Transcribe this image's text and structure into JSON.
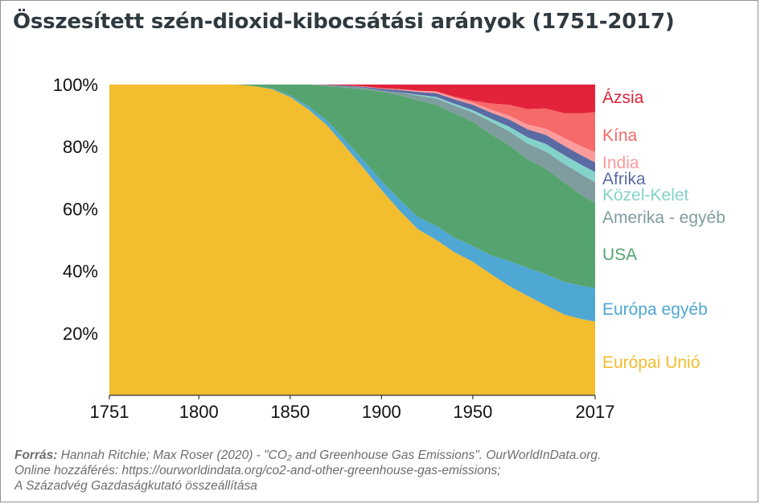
{
  "title": "Összesített szén-dioxid-kibocsátási arányok (1751-2017)",
  "source": {
    "label": "Forrás:",
    "line1": " Hannah Ritchie; Max Roser (2020) - \"CO₂ and Greenhouse Gas Emissions\". OurWorldInData.org.",
    "line2": "Online hozzáférés: https://ourworldindata.org/co2-and-other-greenhouse-gas-emissions;",
    "line3": "A Századvég Gazdaságkutató összeállítása"
  },
  "chart_data": {
    "type": "area",
    "stacked_percent": true,
    "x": [
      1751,
      1800,
      1820,
      1830,
      1840,
      1850,
      1860,
      1870,
      1880,
      1890,
      1900,
      1910,
      1920,
      1930,
      1940,
      1950,
      1960,
      1970,
      1980,
      1990,
      2000,
      2010,
      2017
    ],
    "x_ticks": [
      1751,
      1800,
      1850,
      1900,
      1950,
      2017
    ],
    "y_ticks": [
      20,
      40,
      60,
      80,
      100
    ],
    "y_tick_labels": [
      "20%",
      "40%",
      "60%",
      "80%",
      "100%"
    ],
    "ylim": [
      0,
      100
    ],
    "series": [
      {
        "name": "Európai Unió",
        "color": "#f2bd2e",
        "values": [
          100,
          100,
          100,
          99.5,
          98.5,
          96,
          92,
          87,
          81,
          74,
          67,
          60,
          54,
          50,
          46,
          43,
          39,
          35,
          32,
          29,
          26,
          24,
          23
        ]
      },
      {
        "name": "Európa egyéb",
        "color": "#4fa7d4",
        "values": [
          0,
          0,
          0,
          0,
          0.2,
          0.5,
          1,
          1.5,
          2,
          2.5,
          3,
          3.5,
          4,
          4.5,
          4.7,
          5,
          6,
          8,
          9,
          10,
          10.5,
          10.5,
          10.5
        ]
      },
      {
        "name": "USA",
        "color": "#55a46f",
        "values": [
          0,
          0,
          0,
          0.5,
          1.3,
          3.5,
          7,
          11,
          17,
          23,
          29,
          34,
          38,
          39,
          40,
          40,
          39,
          37,
          35,
          34,
          32,
          28.5,
          26.5
        ]
      },
      {
        "name": "Amerika - egyéb",
        "color": "#7f9c9e",
        "values": [
          0,
          0,
          0,
          0,
          0,
          0,
          0,
          0.3,
          0.5,
          0.5,
          0.5,
          1,
          1.5,
          2,
          2.5,
          3,
          4,
          4.5,
          5,
          5.5,
          6,
          6.5,
          6.5
        ]
      },
      {
        "name": "Közel-Kelet",
        "color": "#84d3cb",
        "values": [
          0,
          0,
          0,
          0,
          0,
          0,
          0,
          0,
          0,
          0,
          0,
          0,
          0.3,
          0.5,
          0.6,
          0.8,
          1,
          1.5,
          2,
          2.5,
          2.8,
          3,
          3.2
        ]
      },
      {
        "name": "Afrika",
        "color": "#5a6aa3",
        "values": [
          0,
          0,
          0,
          0,
          0,
          0,
          0,
          0.1,
          0.2,
          0.3,
          0.5,
          0.7,
          0.9,
          1.2,
          1.4,
          1.7,
          2,
          2.3,
          2.6,
          2.9,
          3,
          3,
          3
        ]
      },
      {
        "name": "India",
        "color": "#fb9b9b",
        "values": [
          0,
          0,
          0,
          0,
          0,
          0,
          0,
          0,
          0,
          0.1,
          0.2,
          0.3,
          0.4,
          0.5,
          0.6,
          0.7,
          0.9,
          1.2,
          1.5,
          2,
          2.5,
          2.9,
          3.2
        ]
      },
      {
        "name": "Kína",
        "color": "#f66a69",
        "values": [
          0,
          0,
          0,
          0,
          0,
          0,
          0,
          0,
          0,
          0,
          0,
          0,
          0,
          0.1,
          0.3,
          0.6,
          2,
          3.5,
          5,
          6.5,
          8,
          10.5,
          12.5
        ]
      },
      {
        "name": "Ázsia",
        "color": "#e2233a",
        "values": [
          0,
          0,
          0,
          0,
          0,
          0,
          0,
          0.1,
          0.3,
          0.6,
          1.2,
          1.5,
          2,
          2.2,
          3.9,
          5.2,
          6.1,
          6.5,
          7.9,
          7.7,
          9.2,
          9.1,
          8.6
        ]
      }
    ],
    "legend_placement": "right",
    "grid": false
  }
}
